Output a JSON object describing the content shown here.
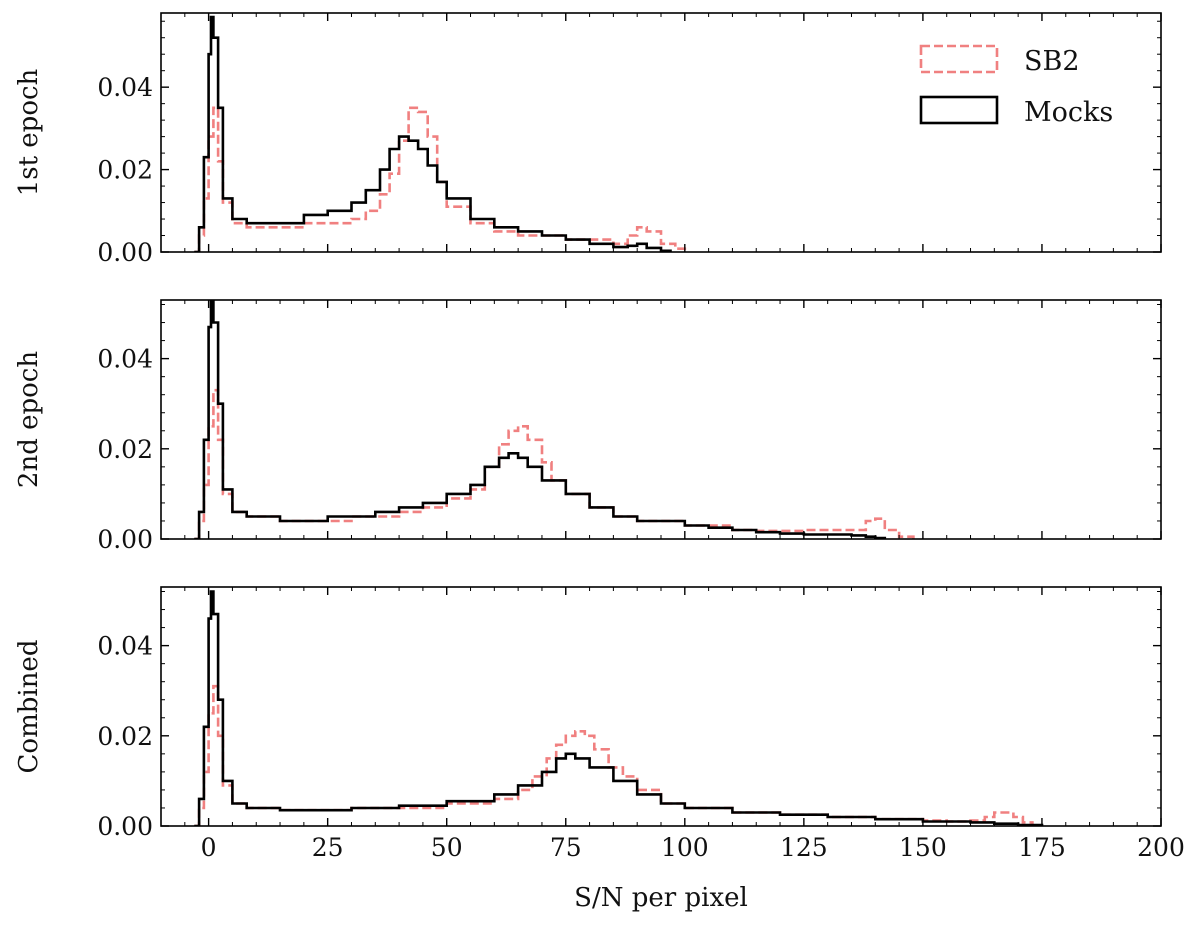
{
  "chart_data": {
    "type": "line",
    "subtype": "step-histogram",
    "xlabel": "S/N per pixel",
    "xlim": [
      -10,
      200
    ],
    "xticks": [
      0,
      25,
      50,
      75,
      100,
      125,
      150,
      175,
      200
    ],
    "xtick_labels": [
      "0",
      "25",
      "50",
      "75",
      "100",
      "125",
      "150",
      "175",
      "200"
    ],
    "legend": {
      "placement": "top-right of first panel",
      "entries": [
        {
          "name": "SB2",
          "style": "dashed",
          "color": "#f08080"
        },
        {
          "name": "Mocks",
          "style": "solid",
          "color": "#000000"
        }
      ]
    },
    "panels": [
      {
        "ylabel": "1st epoch",
        "ylim": [
          0,
          0.058
        ],
        "yticks": [
          0.0,
          0.02,
          0.04
        ],
        "ytick_labels": [
          "0.00",
          "0.02",
          "0.04"
        ],
        "series": [
          {
            "name": "SB2",
            "color": "#f08080",
            "style": "dashed",
            "points": [
              [
                -3,
                0
              ],
              [
                -2,
                0.004
              ],
              [
                -1,
                0.013
              ],
              [
                0,
                0.028
              ],
              [
                1,
                0.035
              ],
              [
                2,
                0.022
              ],
              [
                3,
                0.012
              ],
              [
                5,
                0.007
              ],
              [
                8,
                0.006
              ],
              [
                15,
                0.006
              ],
              [
                20,
                0.007
              ],
              [
                25,
                0.007
              ],
              [
                30,
                0.008
              ],
              [
                33,
                0.01
              ],
              [
                36,
                0.014
              ],
              [
                38,
                0.019
              ],
              [
                40,
                0.027
              ],
              [
                42,
                0.035
              ],
              [
                44,
                0.034
              ],
              [
                46,
                0.028
              ],
              [
                48,
                0.017
              ],
              [
                50,
                0.011
              ],
              [
                55,
                0.007
              ],
              [
                60,
                0.005
              ],
              [
                65,
                0.004
              ],
              [
                70,
                0.004
              ],
              [
                75,
                0.003
              ],
              [
                80,
                0.003
              ],
              [
                85,
                0.002
              ],
              [
                88,
                0.004
              ],
              [
                90,
                0.006
              ],
              [
                92,
                0.005
              ],
              [
                95,
                0.002
              ],
              [
                98,
                0.0008
              ],
              [
                100,
                0
              ]
            ]
          },
          {
            "name": "Mocks",
            "color": "#000000",
            "style": "solid",
            "points": [
              [
                -3,
                0
              ],
              [
                -2,
                0.006
              ],
              [
                -1,
                0.023
              ],
              [
                0,
                0.048
              ],
              [
                0.5,
                0.057
              ],
              [
                1,
                0.052
              ],
              [
                2,
                0.035
              ],
              [
                3,
                0.013
              ],
              [
                5,
                0.008
              ],
              [
                8,
                0.007
              ],
              [
                15,
                0.007
              ],
              [
                20,
                0.009
              ],
              [
                25,
                0.01
              ],
              [
                30,
                0.012
              ],
              [
                33,
                0.015
              ],
              [
                36,
                0.02
              ],
              [
                38,
                0.025
              ],
              [
                40,
                0.028
              ],
              [
                42,
                0.027
              ],
              [
                44,
                0.025
              ],
              [
                46,
                0.021
              ],
              [
                48,
                0.017
              ],
              [
                50,
                0.013
              ],
              [
                55,
                0.008
              ],
              [
                60,
                0.006
              ],
              [
                65,
                0.005
              ],
              [
                70,
                0.004
              ],
              [
                75,
                0.003
              ],
              [
                80,
                0.002
              ],
              [
                85,
                0.0012
              ],
              [
                88,
                0.0015
              ],
              [
                90,
                0.002
              ],
              [
                92,
                0.001
              ],
              [
                95,
                0.0003
              ],
              [
                97,
                0
              ]
            ]
          }
        ]
      },
      {
        "ylabel": "2nd epoch",
        "ylim": [
          0,
          0.053
        ],
        "yticks": [
          0.0,
          0.02,
          0.04
        ],
        "ytick_labels": [
          "0.00",
          "0.02",
          "0.04"
        ],
        "series": [
          {
            "name": "SB2",
            "color": "#f08080",
            "style": "dashed",
            "points": [
              [
                -3,
                0
              ],
              [
                -2,
                0.004
              ],
              [
                -1,
                0.012
              ],
              [
                0,
                0.025
              ],
              [
                1,
                0.033
              ],
              [
                2,
                0.022
              ],
              [
                3,
                0.01
              ],
              [
                5,
                0.006
              ],
              [
                8,
                0.005
              ],
              [
                15,
                0.004
              ],
              [
                25,
                0.004
              ],
              [
                30,
                0.005
              ],
              [
                35,
                0.005
              ],
              [
                40,
                0.006
              ],
              [
                45,
                0.007
              ],
              [
                50,
                0.009
              ],
              [
                55,
                0.011
              ],
              [
                58,
                0.016
              ],
              [
                61,
                0.021
              ],
              [
                63,
                0.024
              ],
              [
                65,
                0.025
              ],
              [
                67,
                0.022
              ],
              [
                70,
                0.017
              ],
              [
                72,
                0.013
              ],
              [
                75,
                0.01
              ],
              [
                80,
                0.007
              ],
              [
                85,
                0.005
              ],
              [
                90,
                0.004
              ],
              [
                95,
                0.004
              ],
              [
                100,
                0.003
              ],
              [
                105,
                0.003
              ],
              [
                110,
                0.002
              ],
              [
                115,
                0.0018
              ],
              [
                120,
                0.0018
              ],
              [
                125,
                0.002
              ],
              [
                130,
                0.002
              ],
              [
                135,
                0.002
              ],
              [
                138,
                0.004
              ],
              [
                140,
                0.0045
              ],
              [
                142,
                0.002
              ],
              [
                145,
                0.0005
              ],
              [
                148,
                0
              ]
            ]
          },
          {
            "name": "Mocks",
            "color": "#000000",
            "style": "solid",
            "points": [
              [
                -3,
                0
              ],
              [
                -2,
                0.006
              ],
              [
                -1,
                0.022
              ],
              [
                0,
                0.047
              ],
              [
                0.5,
                0.053
              ],
              [
                1,
                0.048
              ],
              [
                2,
                0.03
              ],
              [
                3,
                0.011
              ],
              [
                5,
                0.006
              ],
              [
                8,
                0.005
              ],
              [
                15,
                0.004
              ],
              [
                25,
                0.005
              ],
              [
                30,
                0.005
              ],
              [
                35,
                0.006
              ],
              [
                40,
                0.007
              ],
              [
                45,
                0.008
              ],
              [
                50,
                0.01
              ],
              [
                55,
                0.012
              ],
              [
                58,
                0.016
              ],
              [
                61,
                0.018
              ],
              [
                63,
                0.019
              ],
              [
                65,
                0.018
              ],
              [
                67,
                0.016
              ],
              [
                70,
                0.013
              ],
              [
                75,
                0.01
              ],
              [
                80,
                0.007
              ],
              [
                85,
                0.005
              ],
              [
                90,
                0.004
              ],
              [
                95,
                0.004
              ],
              [
                100,
                0.003
              ],
              [
                105,
                0.0025
              ],
              [
                110,
                0.002
              ],
              [
                115,
                0.0015
              ],
              [
                120,
                0.0012
              ],
              [
                125,
                0.001
              ],
              [
                130,
                0.001
              ],
              [
                135,
                0.0008
              ],
              [
                138,
                0.0005
              ],
              [
                140,
                0.0002
              ],
              [
                142,
                0
              ]
            ]
          }
        ]
      },
      {
        "ylabel": "Combined",
        "ylim": [
          0,
          0.053
        ],
        "yticks": [
          0.0,
          0.02,
          0.04
        ],
        "ytick_labels": [
          "0.00",
          "0.02",
          "0.04"
        ],
        "series": [
          {
            "name": "SB2",
            "color": "#f08080",
            "style": "dashed",
            "points": [
              [
                -3,
                0
              ],
              [
                -2,
                0.004
              ],
              [
                -1,
                0.012
              ],
              [
                0,
                0.025
              ],
              [
                1,
                0.031
              ],
              [
                2,
                0.02
              ],
              [
                3,
                0.009
              ],
              [
                5,
                0.005
              ],
              [
                8,
                0.004
              ],
              [
                15,
                0.0035
              ],
              [
                25,
                0.0035
              ],
              [
                30,
                0.004
              ],
              [
                40,
                0.004
              ],
              [
                50,
                0.005
              ],
              [
                60,
                0.006
              ],
              [
                65,
                0.008
              ],
              [
                68,
                0.011
              ],
              [
                71,
                0.015
              ],
              [
                73,
                0.018
              ],
              [
                75,
                0.02
              ],
              [
                77,
                0.021
              ],
              [
                79,
                0.02
              ],
              [
                81,
                0.017
              ],
              [
                84,
                0.013
              ],
              [
                87,
                0.011
              ],
              [
                90,
                0.008
              ],
              [
                95,
                0.005
              ],
              [
                100,
                0.004
              ],
              [
                110,
                0.003
              ],
              [
                120,
                0.0025
              ],
              [
                130,
                0.002
              ],
              [
                140,
                0.0015
              ],
              [
                150,
                0.0012
              ],
              [
                155,
                0.001
              ],
              [
                160,
                0.0012
              ],
              [
                163,
                0.002
              ],
              [
                165,
                0.003
              ],
              [
                167,
                0.003
              ],
              [
                169,
                0.002
              ],
              [
                171,
                0.0008
              ],
              [
                173,
                0
              ]
            ]
          },
          {
            "name": "Mocks",
            "color": "#000000",
            "style": "solid",
            "points": [
              [
                -3,
                0
              ],
              [
                -2,
                0.006
              ],
              [
                -1,
                0.022
              ],
              [
                0,
                0.046
              ],
              [
                0.5,
                0.052
              ],
              [
                1,
                0.047
              ],
              [
                2,
                0.028
              ],
              [
                3,
                0.01
              ],
              [
                5,
                0.005
              ],
              [
                8,
                0.004
              ],
              [
                15,
                0.0035
              ],
              [
                25,
                0.0035
              ],
              [
                30,
                0.004
              ],
              [
                40,
                0.0045
              ],
              [
                50,
                0.0055
              ],
              [
                60,
                0.007
              ],
              [
                65,
                0.009
              ],
              [
                70,
                0.012
              ],
              [
                73,
                0.015
              ],
              [
                75,
                0.016
              ],
              [
                77,
                0.015
              ],
              [
                80,
                0.013
              ],
              [
                85,
                0.01
              ],
              [
                90,
                0.007
              ],
              [
                95,
                0.005
              ],
              [
                100,
                0.004
              ],
              [
                110,
                0.003
              ],
              [
                120,
                0.0025
              ],
              [
                130,
                0.002
              ],
              [
                140,
                0.0015
              ],
              [
                150,
                0.001
              ],
              [
                160,
                0.0008
              ],
              [
                165,
                0.0005
              ],
              [
                170,
                0.0002
              ],
              [
                175,
                0
              ]
            ]
          }
        ]
      }
    ]
  }
}
